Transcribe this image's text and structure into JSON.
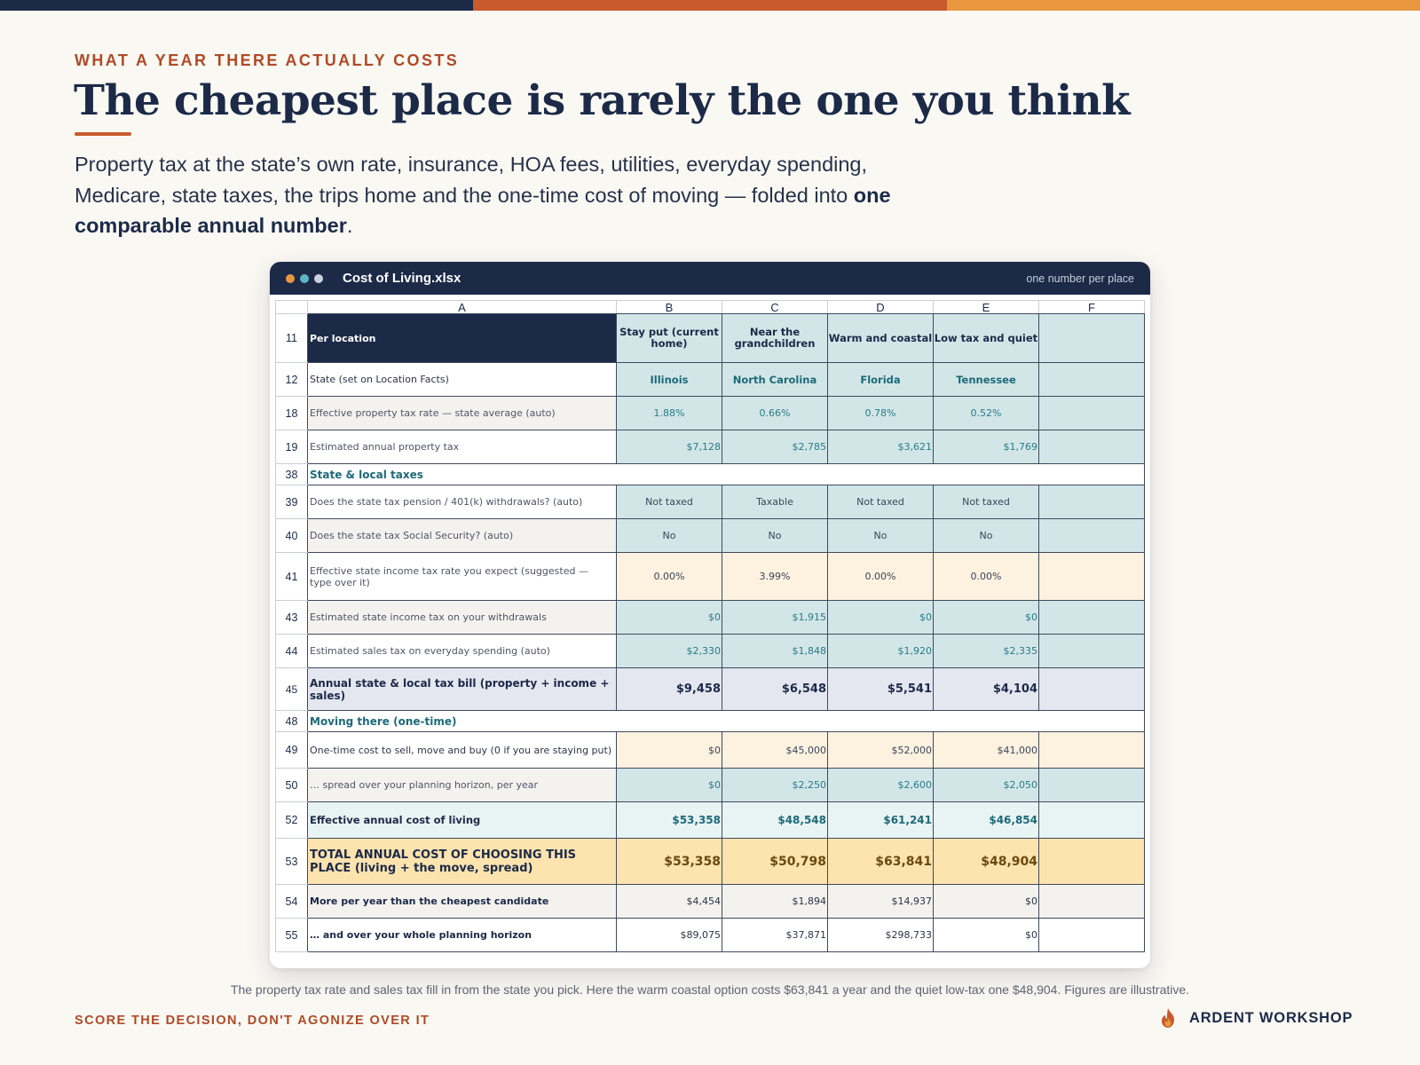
{
  "colors": {
    "navy": "#1c2a48",
    "rust": "#c95a2e",
    "amber": "#e8973f",
    "teal": "#1d6a78"
  },
  "eyebrow": "WHAT A YEAR THERE ACTUALLY COSTS",
  "headline": "The cheapest place is rarely the one you think",
  "lede": {
    "text": "Property tax at the state’s own rate, insurance, HOA fees, utilities, everyday spending, Medicare, state taxes, the trips home and the one-time cost of moving — folded into ",
    "bold": "one comparable annual number",
    "end": "."
  },
  "window": {
    "title": "Cost of Living.xlsx",
    "note": "one number per place",
    "dots": [
      "orange-dot",
      "teal-dot",
      "grey-dot"
    ]
  },
  "sheet": {
    "columns": [
      "A",
      "B",
      "C",
      "D",
      "E",
      "F"
    ],
    "rows": {
      "r11": {
        "n": "11",
        "label": "Per location",
        "cells": [
          "Stay put (current home)",
          "Near the grandchildren",
          "Warm and coastal",
          "Low tax and quiet",
          ""
        ]
      },
      "r12": {
        "n": "12",
        "label": "State  (set on Location Facts)",
        "cells": [
          "Illinois",
          "North Carolina",
          "Florida",
          "Tennessee",
          ""
        ]
      },
      "r18": {
        "n": "18",
        "label": "Effective property tax rate — state average  (auto)",
        "cells": [
          "1.88%",
          "0.66%",
          "0.78%",
          "0.52%",
          ""
        ]
      },
      "r19": {
        "n": "19",
        "label": "Estimated annual property tax",
        "cells": [
          "$7,128",
          "$2,785",
          "$3,621",
          "$1,769",
          ""
        ]
      },
      "r38": {
        "n": "38",
        "label": "State & local taxes"
      },
      "r39": {
        "n": "39",
        "label": "Does the state tax pension / 401(k) withdrawals?  (auto)",
        "cells": [
          "Not taxed",
          "Taxable",
          "Not taxed",
          "Not taxed",
          ""
        ]
      },
      "r40": {
        "n": "40",
        "label": "Does the state tax Social Security?  (auto)",
        "cells": [
          "No",
          "No",
          "No",
          "No",
          ""
        ]
      },
      "r41": {
        "n": "41",
        "label": "Effective state income tax rate you expect  (suggested — type over it)",
        "cells": [
          "0.00%",
          "3.99%",
          "0.00%",
          "0.00%",
          ""
        ]
      },
      "r43": {
        "n": "43",
        "label": "Estimated state income tax on your withdrawals",
        "cells": [
          "$0",
          "$1,915",
          "$0",
          "$0",
          ""
        ]
      },
      "r44": {
        "n": "44",
        "label": "Estimated sales tax on everyday spending  (auto)",
        "cells": [
          "$2,330",
          "$1,848",
          "$1,920",
          "$2,335",
          ""
        ]
      },
      "r45": {
        "n": "45",
        "label": "Annual state & local tax bill  (property + income + sales)",
        "cells": [
          "$9,458",
          "$6,548",
          "$5,541",
          "$4,104",
          ""
        ]
      },
      "r48": {
        "n": "48",
        "label": "Moving there (one-time)"
      },
      "r49": {
        "n": "49",
        "label": "One-time cost to sell, move and buy  (0 if you are staying put)",
        "cells": [
          "$0",
          "$45,000",
          "$52,000",
          "$41,000",
          ""
        ]
      },
      "r50": {
        "n": "50",
        "label": "… spread over your planning horizon, per year",
        "cells": [
          "$0",
          "$2,250",
          "$2,600",
          "$2,050",
          ""
        ]
      },
      "r52": {
        "n": "52",
        "label": "Effective annual cost of living",
        "cells": [
          "$53,358",
          "$48,548",
          "$61,241",
          "$46,854",
          ""
        ]
      },
      "r53": {
        "n": "53",
        "label": "TOTAL ANNUAL COST OF CHOOSING THIS PLACE (living + the move, spread)",
        "cells": [
          "$53,358",
          "$50,798",
          "$63,841",
          "$48,904",
          ""
        ]
      },
      "r54": {
        "n": "54",
        "label": "More per year than the cheapest candidate",
        "cells": [
          "$4,454",
          "$1,894",
          "$14,937",
          "$0",
          ""
        ]
      },
      "r55": {
        "n": "55",
        "label": "… and over your whole planning horizon",
        "cells": [
          "$89,075",
          "$37,871",
          "$298,733",
          "$0",
          ""
        ]
      }
    }
  },
  "caption": "The property tax rate and sales tax fill in from the state you pick. Here the warm coastal option costs $63,841 a year and the quiet low-tax one $48,904. Figures are illustrative.",
  "footer": {
    "tagline": "SCORE THE DECISION, DON'T AGONIZE OVER IT",
    "brand": "ARDENT WORKSHOP",
    "brand_icon": "flame-icon"
  }
}
